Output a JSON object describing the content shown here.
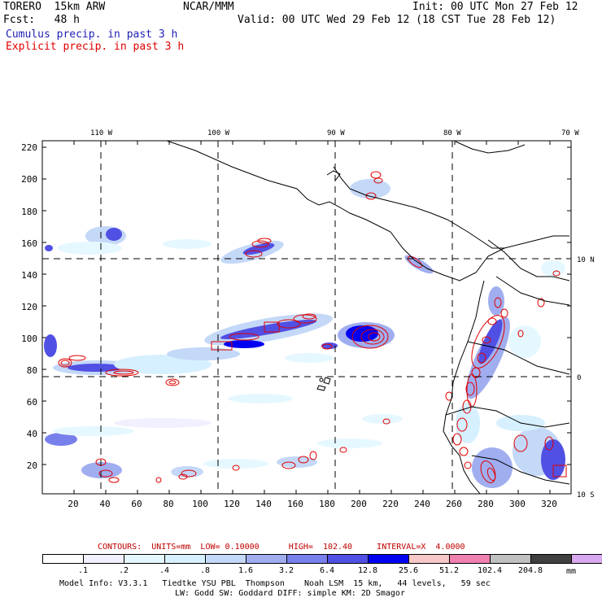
{
  "header": {
    "model": "TORERO  15km ARW",
    "center": "NCAR/MMM",
    "init": "Init: 00 UTC Mon 27 Feb 12",
    "fcst": "Fcst:   48 h",
    "valid": "Valid: 00 UTC Wed 29 Feb 12 (18 CST Tue 28 Feb 12)",
    "legend_cumulus": "Cumulus precip. in past 3 h",
    "legend_explicit": "Explicit precip. in past 3 h"
  },
  "axes": {
    "top_lon_labels": [
      "110 W",
      "100 W",
      "90 W",
      "80 W",
      "70 W"
    ],
    "right_lat_labels": [
      "10 N",
      "0",
      "10 S"
    ],
    "left_ticks": [
      "220",
      "200",
      "180",
      "160",
      "140",
      "120",
      "100",
      "80",
      "60",
      "40",
      "20"
    ],
    "bottom_ticks": [
      "20",
      "40",
      "60",
      "80",
      "100",
      "120",
      "140",
      "160",
      "180",
      "200",
      "220",
      "240",
      "260",
      "280",
      "300",
      "320"
    ]
  },
  "contour_info": "CONTOURS:  UNITS=mm  LOW= 0.10000      HIGH=  102.40     INTERVAL=X  4.0000",
  "colorbar": {
    "colors": [
      "#ffffff",
      "#f0f0ff",
      "#e6f8ff",
      "#d6f0ff",
      "#c4d8f8",
      "#a0aef0",
      "#7880ec",
      "#5050e4",
      "#0000f0",
      "#f8c8c8",
      "#f080b0",
      "#c0c0c0",
      "#404040",
      "#d8a8f0"
    ],
    "labels": [
      ".1",
      ".2",
      ".4",
      ".8",
      "1.6",
      "3.2",
      "6.4",
      "12.8",
      "25.6",
      "51.2",
      "102.4",
      "204.8"
    ],
    "units": "mm"
  },
  "footer": {
    "line1": "Model Info: V3.3.1   Tiedtke YSU PBL  Thompson    Noah LSM  15 km,   44 levels,   59 sec",
    "line2": "LW: Godd SW: Goddard DIFF: simple KM: 2D Smagor"
  }
}
